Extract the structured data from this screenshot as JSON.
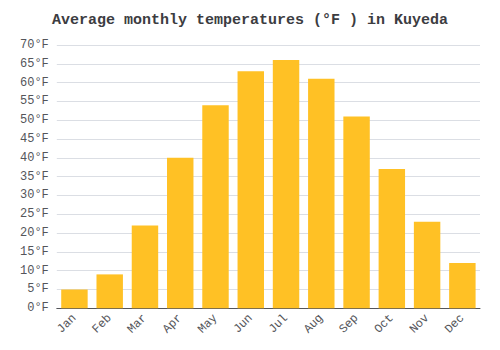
{
  "chart_data": {
    "type": "bar",
    "title": "Average monthly temperatures (°F ) in Kuyeda",
    "categories": [
      "Jan",
      "Feb",
      "Mar",
      "Apr",
      "May",
      "Jun",
      "Jul",
      "Aug",
      "Sep",
      "Oct",
      "Nov",
      "Dec"
    ],
    "values": [
      5,
      9,
      22,
      40,
      54,
      63,
      66,
      61,
      51,
      37,
      23,
      12
    ],
    "color": "#FFC125",
    "ylim": [
      0,
      70
    ],
    "yticks": [
      {
        "value": 0,
        "label": "0°F"
      },
      {
        "value": 5,
        "label": "5°F"
      },
      {
        "value": 10,
        "label": "10°F"
      },
      {
        "value": 15,
        "label": "15°F"
      },
      {
        "value": 20,
        "label": "20°F"
      },
      {
        "value": 25,
        "label": "25°F"
      },
      {
        "value": 30,
        "label": "30°F"
      },
      {
        "value": 35,
        "label": "35°F"
      },
      {
        "value": 40,
        "label": "40°F"
      },
      {
        "value": 45,
        "label": "45°F"
      },
      {
        "value": 50,
        "label": "50°F"
      },
      {
        "value": 55,
        "label": "55°F"
      },
      {
        "value": 60,
        "label": "60°F"
      },
      {
        "value": 65,
        "label": "65°F"
      },
      {
        "value": 70,
        "label": "70°F"
      }
    ],
    "grid": true
  }
}
